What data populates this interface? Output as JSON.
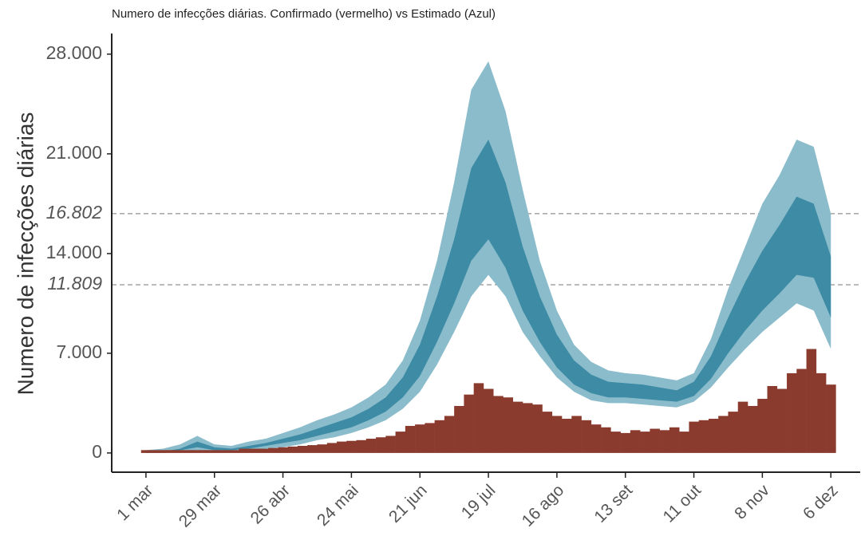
{
  "chart_data": {
    "type": "area",
    "title": "Numero de infecções diárias. Confirmado (vermelho) vs Estimado (Azul)",
    "ylabel": "Numero de infecções diárias",
    "xlim": [
      -14,
      292
    ],
    "ylim": [
      -1350,
      29450
    ],
    "xticks": [
      {
        "value": 0,
        "label": "1 mar"
      },
      {
        "value": 28,
        "label": "29 mar"
      },
      {
        "value": 56,
        "label": "26 abr"
      },
      {
        "value": 84,
        "label": "24 mai"
      },
      {
        "value": 112,
        "label": "21 jun"
      },
      {
        "value": 140,
        "label": "19 jul"
      },
      {
        "value": 168,
        "label": "16 ago"
      },
      {
        "value": 196,
        "label": "13 set"
      },
      {
        "value": 224,
        "label": "11 out"
      },
      {
        "value": 252,
        "label": "8 nov"
      },
      {
        "value": 280,
        "label": "6 dez"
      }
    ],
    "yticks": [
      0,
      {
        "value": 7000,
        "label": "7.000"
      },
      {
        "value": 14000,
        "label": "14.000"
      },
      {
        "value": 21000,
        "label": "21.000"
      },
      {
        "value": 28000,
        "label": "28.000"
      }
    ],
    "hlines": [
      {
        "value": 11809,
        "label": "11.809"
      },
      {
        "value": 16802,
        "label": "16.802"
      }
    ],
    "band_x": [
      0,
      7,
      14,
      21,
      28,
      35,
      42,
      49,
      56,
      63,
      70,
      77,
      84,
      91,
      98,
      105,
      112,
      119,
      126,
      133,
      140,
      147,
      154,
      161,
      168,
      175,
      182,
      189,
      196,
      203,
      210,
      217,
      224,
      231,
      238,
      245,
      252,
      259,
      266,
      273,
      280
    ],
    "bands": [
      {
        "color": "#8bbccb",
        "lower": [
          0,
          0,
          100,
          200,
          100,
          100,
          200,
          300,
          400,
          600,
          900,
          1100,
          1400,
          1800,
          2300,
          3100,
          4300,
          6200,
          8500,
          11000,
          12500,
          11000,
          8500,
          6800,
          5300,
          4300,
          3700,
          3500,
          3500,
          3400,
          3300,
          3200,
          3600,
          4600,
          6000,
          7300,
          8500,
          9500,
          10500,
          10000,
          7300
        ],
        "upper": [
          200,
          300,
          600,
          1200,
          600,
          500,
          800,
          1000,
          1400,
          1800,
          2300,
          2700,
          3200,
          3900,
          4800,
          6500,
          9300,
          13500,
          19000,
          25500,
          27500,
          24000,
          18500,
          13500,
          10000,
          7600,
          6400,
          5800,
          5600,
          5500,
          5300,
          5100,
          5600,
          8000,
          11500,
          14500,
          17500,
          19500,
          22000,
          21500,
          16800
        ]
      },
      {
        "color": "#3d8ba5",
        "lower": [
          0,
          50,
          200,
          400,
          200,
          200,
          300,
          500,
          700,
          900,
          1200,
          1500,
          1800,
          2300,
          2900,
          3900,
          5400,
          7800,
          10500,
          13500,
          15000,
          13000,
          10000,
          7800,
          6000,
          4800,
          4200,
          3900,
          3900,
          3800,
          3700,
          3600,
          4000,
          5200,
          7000,
          8600,
          10000,
          11200,
          12500,
          12300,
          9500
        ],
        "upper": [
          100,
          100,
          300,
          800,
          400,
          300,
          500,
          700,
          1000,
          1300,
          1700,
          2100,
          2500,
          3100,
          3900,
          5300,
          7600,
          11000,
          15000,
          20000,
          22000,
          19000,
          14500,
          11000,
          8300,
          6500,
          5500,
          5000,
          4900,
          4800,
          4600,
          4400,
          5000,
          6800,
          9500,
          12000,
          14200,
          16000,
          18000,
          17500,
          13800
        ]
      }
    ],
    "bars": {
      "color": "#8b3a2e",
      "x": [
        0,
        4,
        8,
        12,
        16,
        20,
        24,
        28,
        32,
        36,
        40,
        44,
        48,
        52,
        56,
        60,
        64,
        68,
        72,
        76,
        80,
        84,
        88,
        92,
        96,
        100,
        104,
        108,
        112,
        116,
        120,
        124,
        128,
        132,
        136,
        140,
        144,
        148,
        152,
        156,
        160,
        164,
        168,
        172,
        176,
        180,
        184,
        188,
        192,
        196,
        200,
        204,
        208,
        212,
        216,
        220,
        224,
        228,
        232,
        236,
        240,
        244,
        248,
        252,
        256,
        260,
        264,
        268,
        272,
        276,
        280
      ],
      "values": [
        200,
        200,
        200,
        200,
        200,
        200,
        200,
        200,
        200,
        200,
        300,
        300,
        300,
        350,
        400,
        450,
        500,
        550,
        600,
        700,
        800,
        850,
        900,
        1000,
        1100,
        1200,
        1500,
        1900,
        2000,
        2100,
        2300,
        2600,
        3300,
        4100,
        4900,
        4500,
        4000,
        3900,
        3600,
        3500,
        3400,
        2900,
        2600,
        2400,
        2600,
        2300,
        2000,
        1800,
        1500,
        1400,
        1600,
        1500,
        1700,
        1600,
        1800,
        1500,
        2200,
        2300,
        2400,
        2600,
        2900,
        3600,
        3300,
        3800,
        4700,
        4500,
        5600,
        5900,
        7300,
        5600,
        4800
      ]
    }
  }
}
